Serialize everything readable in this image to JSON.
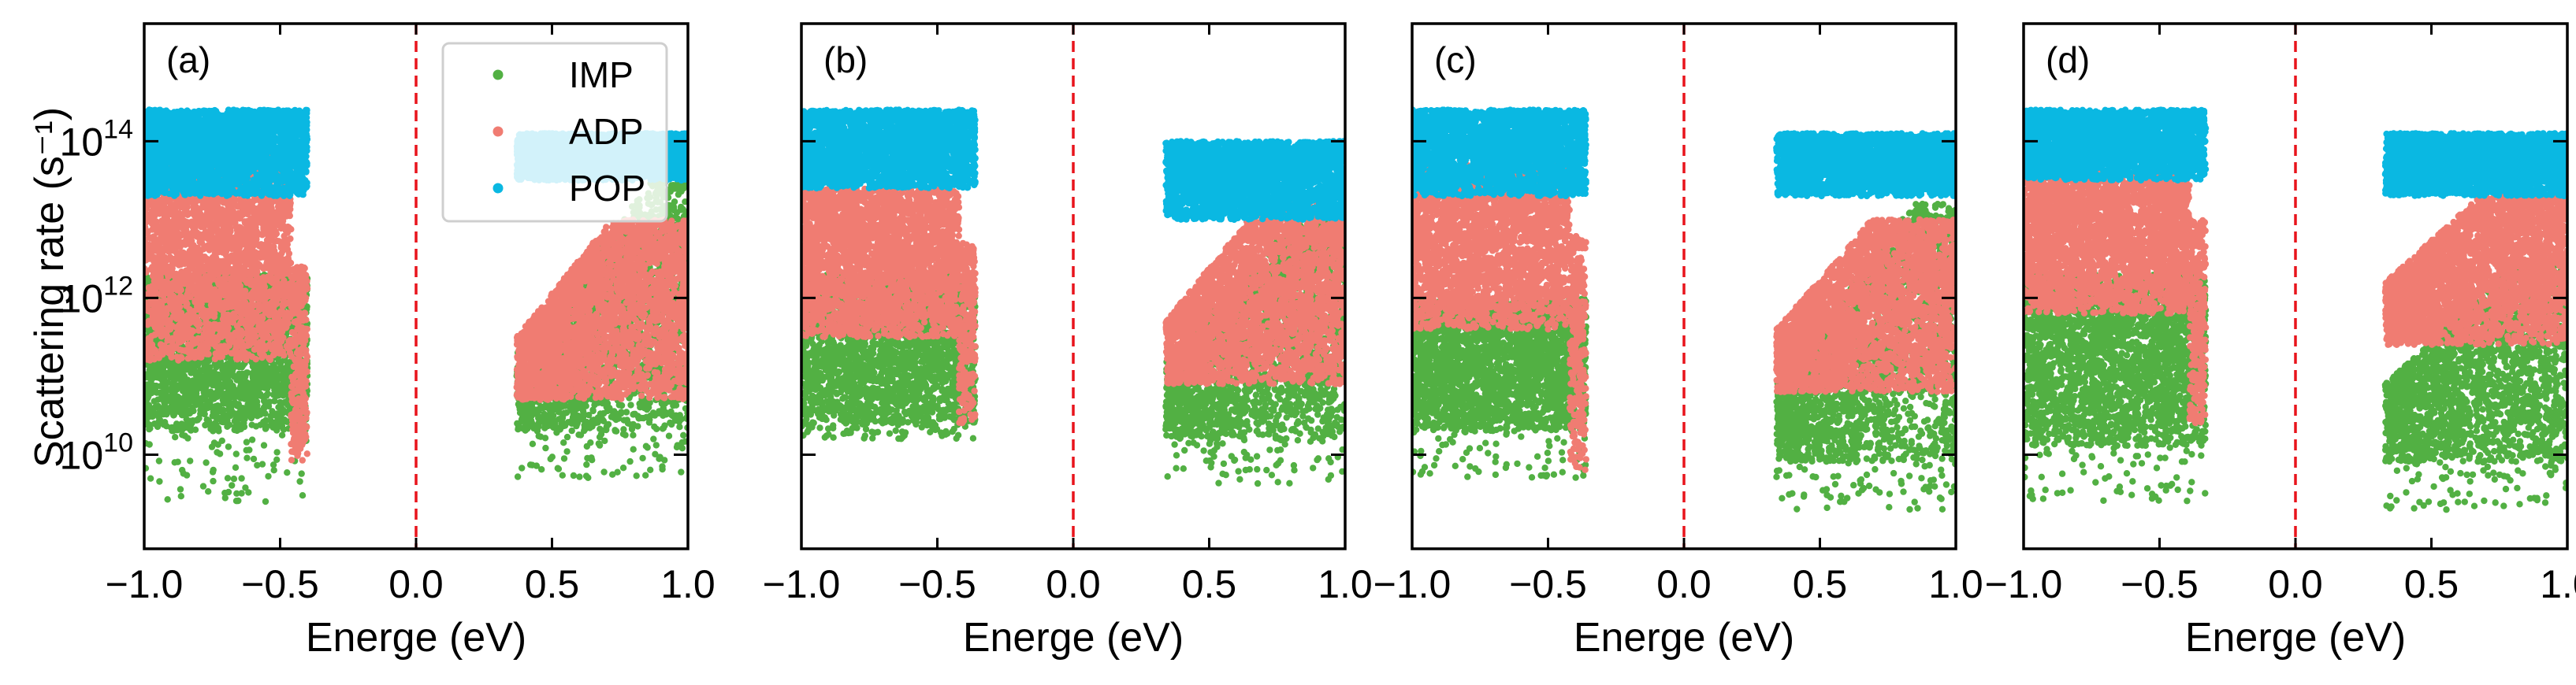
{
  "chart_data": {
    "type": "scatter",
    "ylabel": "Scattering rate (s⁻¹)",
    "xlabel": "Energe (eV)",
    "xlim": [
      -1.0,
      1.0
    ],
    "ylim_log10": [
      8.8,
      15.5
    ],
    "y_scale": "log",
    "x_ticks": [
      "−1.0",
      "−0.5",
      "0.0",
      "0.5",
      "1.0"
    ],
    "x_tick_values": [
      -1.0,
      -0.5,
      0.0,
      0.5,
      1.0
    ],
    "y_tick_values_log10": [
      10,
      12,
      14
    ],
    "y_ticks": [
      {
        "base": "10",
        "exp": "10"
      },
      {
        "base": "10",
        "exp": "12"
      },
      {
        "base": "10",
        "exp": "14"
      }
    ],
    "reference_line": {
      "x": 0.0,
      "color": "#e8141c",
      "style": "dashed"
    },
    "legend": {
      "placement": "top-right of panel (a)",
      "entries": [
        {
          "label": "IMP",
          "color": "#52b043"
        },
        {
          "label": "ADP",
          "color": "#f07c72"
        },
        {
          "label": "POP",
          "color": "#0ab8e2"
        }
      ]
    },
    "series_colors": {
      "IMP": "#52b043",
      "ADP": "#f07c72",
      "POP": "#0ab8e2"
    },
    "panels": [
      {
        "label": "(a)",
        "valence": {
          "edge": -0.4,
          "POP": {
            "log_range": [
              13.3,
              14.4
            ]
          },
          "ADP": {
            "log_range": [
              11.2,
              13.8
            ],
            "tail_min": 9.9
          },
          "IMP": {
            "log_range": [
              10.3,
              12.3
            ],
            "sparse_min": 9.4
          }
        },
        "conduction": {
          "edge": 0.37,
          "POP": {
            "log_range": [
              13.5,
              14.1
            ]
          },
          "ADP": {
            "log_range": [
              10.7,
              13.0
            ]
          },
          "IMP": {
            "log_range": [
              10.3,
              13.5
            ]
          }
        }
      },
      {
        "label": "(b)",
        "valence": {
          "edge": -0.36,
          "POP": {
            "log_range": [
              13.4,
              14.4
            ]
          },
          "ADP": {
            "log_range": [
              11.5,
              13.4
            ],
            "tail_min": 10.4
          },
          "IMP": {
            "log_range": [
              10.4,
              12.3
            ],
            "sparse_min": 10.2
          }
        },
        "conduction": {
          "edge": 0.34,
          "POP": {
            "log_range": [
              13.0,
              14.0
            ]
          },
          "ADP": {
            "log_range": [
              10.9,
              13.2
            ]
          },
          "IMP": {
            "log_range": [
              10.2,
              13.1
            ]
          }
        }
      },
      {
        "label": "(c)",
        "valence": {
          "edge": -0.36,
          "POP": {
            "log_range": [
              13.3,
              14.4
            ]
          },
          "ADP": {
            "log_range": [
              11.6,
              13.7
            ],
            "tail_min": 9.8
          },
          "IMP": {
            "log_range": [
              10.3,
              12.0
            ],
            "sparse_min": 9.7
          }
        },
        "conduction": {
          "edge": 0.34,
          "POP": {
            "log_range": [
              13.3,
              14.1
            ]
          },
          "ADP": {
            "log_range": [
              10.8,
              13.0
            ]
          },
          "IMP": {
            "log_range": [
              9.9,
              13.2
            ]
          }
        }
      },
      {
        "label": "(d)",
        "valence": {
          "edge": -0.33,
          "POP": {
            "log_range": [
              13.5,
              14.4
            ]
          },
          "ADP": {
            "log_range": [
              11.8,
              13.6
            ],
            "tail_min": 10.4
          },
          "IMP": {
            "log_range": [
              10.1,
              12.3
            ],
            "sparse_min": 9.4
          }
        },
        "conduction": {
          "edge": 0.33,
          "POP": {
            "log_range": [
              13.3,
              14.1
            ]
          },
          "ADP": {
            "log_range": [
              11.4,
              13.3
            ]
          },
          "IMP": {
            "log_range": [
              9.9,
              12.5
            ]
          }
        }
      }
    ]
  }
}
